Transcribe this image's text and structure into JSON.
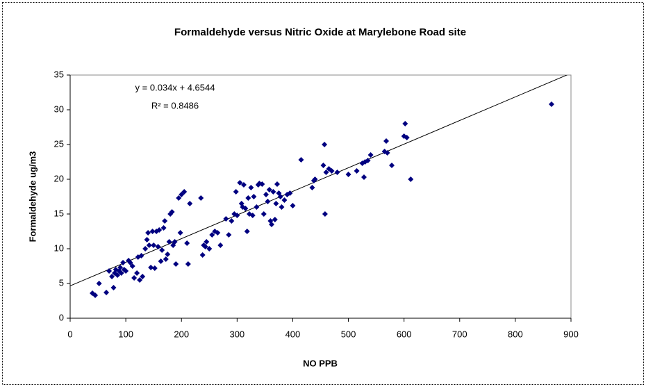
{
  "chart_data": {
    "type": "scatter",
    "title": "Formaldehyde versus Nitric Oxide at Marylebone Road site",
    "x_label": "NO PPB",
    "y_label": "Formaldehyde ug/m3",
    "equation": "y = 0.034x + 4.6544",
    "r_squared": "R² = 0.8486",
    "trendline": {
      "slope": 0.034,
      "intercept": 4.6544
    },
    "color": "#000080",
    "xlim": [
      0,
      900
    ],
    "xticks": [
      0,
      100,
      200,
      300,
      400,
      500,
      600,
      700,
      800,
      900
    ],
    "ylim": [
      0,
      35
    ],
    "yticks": [
      0,
      5,
      10,
      15,
      20,
      25,
      30,
      35
    ],
    "x": [
      40,
      45,
      52,
      65,
      70,
      75,
      78,
      80,
      82,
      85,
      88,
      90,
      92,
      95,
      97,
      100,
      105,
      108,
      112,
      115,
      120,
      122,
      125,
      128,
      130,
      135,
      138,
      140,
      142,
      145,
      148,
      150,
      152,
      155,
      158,
      160,
      163,
      165,
      168,
      170,
      172,
      175,
      178,
      180,
      183,
      185,
      188,
      190,
      195,
      198,
      200,
      205,
      210,
      212,
      215,
      235,
      238,
      240,
      243,
      245,
      250,
      255,
      260,
      265,
      270,
      280,
      285,
      290,
      295,
      298,
      300,
      305,
      308,
      310,
      312,
      315,
      318,
      320,
      322,
      325,
      328,
      330,
      335,
      338,
      340,
      345,
      348,
      352,
      355,
      358,
      360,
      362,
      365,
      368,
      370,
      372,
      375,
      378,
      380,
      385,
      390,
      395,
      400,
      415,
      435,
      438,
      440,
      455,
      457,
      458,
      460,
      465,
      470,
      480,
      500,
      515,
      525,
      528,
      530,
      535,
      540,
      565,
      568,
      570,
      578,
      600,
      602,
      605,
      612,
      865
    ],
    "values": [
      3.6,
      3.3,
      5,
      3.7,
      6.8,
      6,
      4.4,
      6.5,
      7,
      6.2,
      6.8,
      7.3,
      6.5,
      8,
      7,
      6.8,
      8.3,
      8,
      7.5,
      5.8,
      6.5,
      8.8,
      5.5,
      9,
      6,
      10,
      11.3,
      12.3,
      10.5,
      7.3,
      12.5,
      10.5,
      7.2,
      12.5,
      10.3,
      12.7,
      8.2,
      9.8,
      13,
      14,
      8.5,
      9.2,
      11,
      15,
      15.3,
      10.5,
      11,
      7.8,
      17.3,
      12.3,
      17.8,
      18.2,
      10.8,
      7.8,
      16.5,
      17.3,
      9.1,
      10.5,
      10.3,
      11,
      10,
      12,
      12.5,
      12.3,
      10.5,
      14.3,
      12,
      14,
      15,
      18.2,
      14.8,
      19.5,
      16.5,
      16,
      19.2,
      15.8,
      12.5,
      17.3,
      15,
      18.8,
      14.8,
      17.5,
      16,
      19.2,
      19.4,
      19.3,
      15,
      17.8,
      16.8,
      18.5,
      14,
      13.5,
      18.2,
      14.2,
      16.5,
      19.3,
      18,
      17.5,
      16,
      17,
      17.8,
      18,
      16.2,
      22.8,
      18.8,
      19.8,
      20,
      22,
      25,
      15,
      21,
      21.5,
      21.2,
      21,
      20.7,
      21.2,
      22.3,
      20.3,
      22.5,
      22.7,
      23.5,
      24,
      25.5,
      23.8,
      22,
      26.2,
      28,
      26,
      20,
      30.8
    ]
  }
}
